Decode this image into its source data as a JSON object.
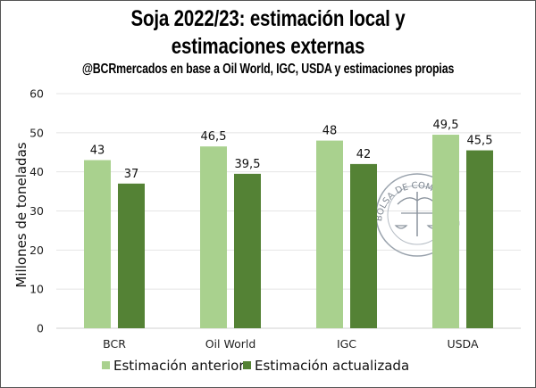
{
  "chart_data": {
    "type": "bar",
    "title": "Soja 2022/23: estimación local y estimaciones externas",
    "title_lines": [
      "Soja 2022/23: estimación local y",
      "estimaciones externas"
    ],
    "subtitle": "@BCRmercados en base a Oil World, IGC, USDA y estimaciones propias",
    "xlabel": "",
    "ylabel": "Millones de toneladas",
    "ylim": [
      0,
      60
    ],
    "yticks": [
      0,
      10,
      20,
      30,
      40,
      50,
      60
    ],
    "grid": true,
    "legend_position": "bottom",
    "categories": [
      "BCR",
      "Oil World",
      "IGC",
      "USDA"
    ],
    "series": [
      {
        "name": "Estimación anterior",
        "color": "#a9d18e",
        "values": [
          43,
          46.5,
          48,
          49.5
        ],
        "labels": [
          "43",
          "46,5",
          "48",
          "49,5"
        ]
      },
      {
        "name": "Estimación actualizada",
        "color": "#548235",
        "values": [
          37,
          39.5,
          42,
          45.5
        ],
        "labels": [
          "37",
          "39,5",
          "42",
          "45,5"
        ]
      }
    ],
    "watermark": "Bolsa de Comercio de Rosario seal",
    "watermark_text": "BOLSA DE COMERCIO DE ROSARIO"
  }
}
